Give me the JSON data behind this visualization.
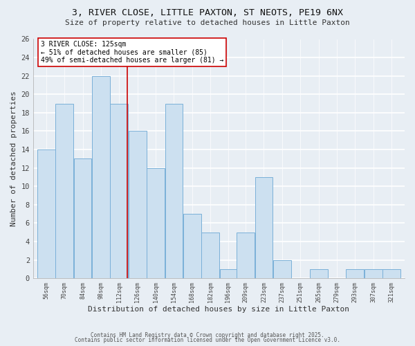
{
  "title1": "3, RIVER CLOSE, LITTLE PAXTON, ST NEOTS, PE19 6NX",
  "title2": "Size of property relative to detached houses in Little Paxton",
  "xlabel": "Distribution of detached houses by size in Little Paxton",
  "ylabel": "Number of detached properties",
  "bin_edges": [
    56,
    70,
    84,
    98,
    112,
    126,
    140,
    154,
    168,
    182,
    196,
    209,
    223,
    237,
    251,
    265,
    279,
    293,
    307,
    321,
    335
  ],
  "counts": [
    14,
    19,
    13,
    22,
    19,
    16,
    12,
    19,
    7,
    5,
    1,
    5,
    11,
    2,
    0,
    1,
    0,
    1,
    1,
    1
  ],
  "bar_color": "#cce0f0",
  "bar_edge_color": "#7ab0d8",
  "vline_x": 125,
  "vline_color": "#cc0000",
  "annotation_title": "3 RIVER CLOSE: 125sqm",
  "annotation_line1": "← 51% of detached houses are smaller (85)",
  "annotation_line2": "49% of semi-detached houses are larger (81) →",
  "annotation_box_facecolor": "#ffffff",
  "annotation_box_edge": "#cc0000",
  "ylim": [
    0,
    26
  ],
  "yticks": [
    0,
    2,
    4,
    6,
    8,
    10,
    12,
    14,
    16,
    18,
    20,
    22,
    24,
    26
  ],
  "footnote1": "Contains HM Land Registry data © Crown copyright and database right 2025.",
  "footnote2": "Contains public sector information licensed under the Open Government Licence v3.0.",
  "bg_color": "#e8eef4"
}
